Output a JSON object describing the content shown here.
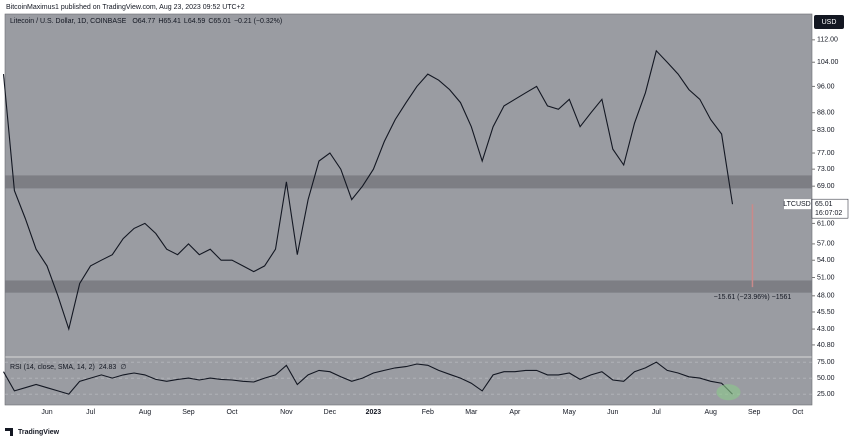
{
  "header": {
    "title": "BitcoinMaximus1 published on TradingView.com, Aug 23, 2023 09:52 UTC+2",
    "currency": "USD"
  },
  "footer": {
    "brand": "TradingView"
  },
  "chart_data": [
    {
      "type": "line",
      "title": "Litecoin / U.S. Dollar, 1D, COINBASE",
      "ohlc": [
        {
          "label": "O",
          "value": 64.77
        },
        {
          "label": "H",
          "value": 65.41
        },
        {
          "label": "L",
          "value": 64.59
        },
        {
          "label": "C",
          "value": 65.01
        }
      ],
      "change": "−0.21 (−0.32%)",
      "last_price": {
        "symbol": "LTCUSD",
        "value": 65.01,
        "countdown": "16:07:02"
      },
      "log": true,
      "color": "#131722",
      "background": "#9a9ca2",
      "zones": [
        [
          68.5,
          71.5
        ],
        [
          48.5,
          50.5
        ]
      ],
      "zone_color": "#75777d",
      "measure": {
        "from": 65,
        "to": 49.4,
        "label": "−15.61 (−23.96%) −1561",
        "color": "#c98a8a"
      },
      "categories": [
        null,
        null,
        null,
        null,
        "Jun",
        null,
        null,
        null,
        "Jul",
        null,
        null,
        null,
        null,
        "Aug",
        null,
        null,
        null,
        "Sep",
        null,
        null,
        null,
        "Oct",
        null,
        null,
        null,
        null,
        "Nov",
        null,
        null,
        null,
        "Dec",
        null,
        null,
        null,
        "2023",
        null,
        null,
        null,
        null,
        "Feb",
        null,
        null,
        null,
        "Mar",
        null,
        null,
        null,
        "Apr",
        null,
        null,
        null,
        null,
        "May",
        null,
        null,
        null,
        "Jun",
        null,
        null,
        null,
        "Jul",
        null,
        null,
        null,
        null,
        "Aug",
        null,
        null,
        null,
        "Sep",
        null,
        null,
        null,
        "Oct",
        null
      ],
      "values": [
        100,
        68,
        62,
        56,
        53,
        48,
        43,
        50,
        53,
        54,
        55,
        58,
        60,
        61,
        59,
        56,
        55,
        57,
        55,
        56,
        54,
        54,
        53,
        52,
        53,
        56,
        70,
        55,
        66,
        75,
        77,
        73,
        66,
        69,
        73,
        80,
        86,
        91,
        96,
        100,
        98,
        95,
        91,
        84,
        75,
        84,
        90,
        92,
        94,
        96,
        90,
        89,
        92,
        84,
        88,
        92,
        78,
        74,
        85,
        94,
        108,
        104,
        100,
        95,
        92,
        86,
        82,
        65.01,
        null,
        null,
        null,
        null,
        null,
        null,
        null
      ],
      "ylim": [
        39.2,
        122
      ],
      "yticks": [
        {
          "value": 112,
          "label": "112.00"
        },
        {
          "value": 104,
          "label": "104.00"
        },
        {
          "value": 96,
          "label": "96.00"
        },
        {
          "value": 88,
          "label": "88.00"
        },
        {
          "value": 83,
          "label": "83.00"
        },
        {
          "value": 77,
          "label": "77.00"
        },
        {
          "value": 73,
          "label": "73.00"
        },
        {
          "value": 69,
          "label": "69.00"
        },
        {
          "value": 61,
          "label": "61.00"
        },
        {
          "value": 57,
          "label": "57.00"
        },
        {
          "value": 54,
          "label": "54.00"
        },
        {
          "value": 51,
          "label": "51.00"
        },
        {
          "value": 48,
          "label": "48.00"
        },
        {
          "value": 45.5,
          "label": "45.50"
        },
        {
          "value": 43,
          "label": "43.00"
        },
        {
          "value": 40.8,
          "label": "40.80"
        }
      ]
    },
    {
      "type": "line",
      "title": "RSI (14, close, SMA, 14, 2)",
      "last_value": 24.83,
      "na_label": "∅",
      "color": "#131722",
      "highlight_color": "#8cc98a",
      "values": [
        60,
        30,
        35,
        40,
        35,
        30,
        25,
        45,
        50,
        55,
        50,
        55,
        58,
        55,
        48,
        45,
        48,
        50,
        47,
        50,
        48,
        47,
        45,
        44,
        50,
        55,
        70,
        40,
        55,
        62,
        60,
        52,
        45,
        50,
        58,
        62,
        66,
        68,
        72,
        70,
        62,
        56,
        50,
        42,
        30,
        55,
        60,
        60,
        62,
        62,
        55,
        55,
        58,
        48,
        55,
        60,
        47,
        45,
        60,
        66,
        75,
        62,
        58,
        52,
        50,
        45,
        42,
        24.83,
        null,
        null,
        null,
        null,
        null,
        null,
        null
      ],
      "ylim": [
        8,
        83
      ],
      "yticks": [
        {
          "value": 75,
          "label": "75.00"
        },
        {
          "value": 50,
          "label": "50.00"
        },
        {
          "value": 25,
          "label": "25.00"
        }
      ]
    }
  ]
}
